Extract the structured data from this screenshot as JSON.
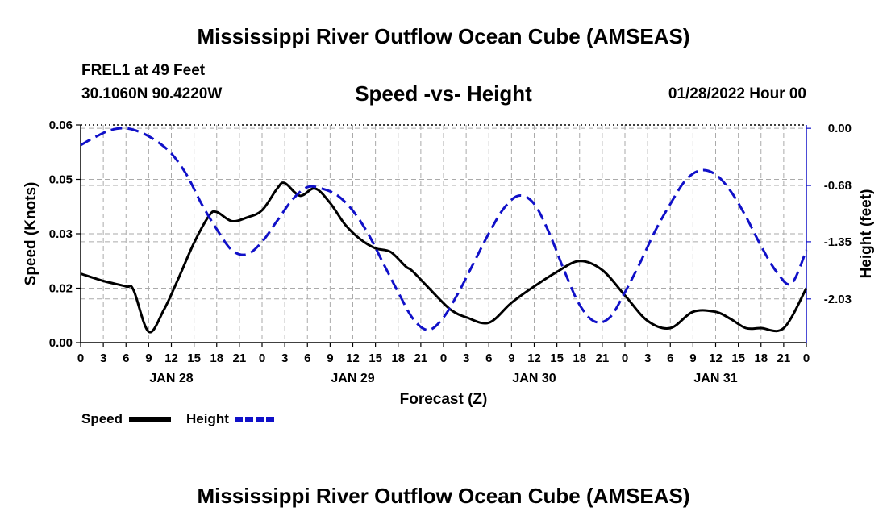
{
  "header": {
    "title": "Mississippi River Outflow Ocean Cube (AMSEAS)",
    "station": "FREL1 at 49 Feet",
    "coords": "30.1060N  90.4220W",
    "subtitle": "Speed -vs- Height",
    "timestamp": "01/28/2022 Hour 00"
  },
  "footer": {
    "title": "Mississippi River Outflow Ocean Cube (AMSEAS)"
  },
  "legend": {
    "speed_label": "Speed",
    "height_label": "Height"
  },
  "colors": {
    "speed": "#000000",
    "height": "#1010c8",
    "grid": "#aaaaaa"
  },
  "chart_data": {
    "type": "line",
    "xlabel": "Forecast (Z)",
    "ylabel": "Speed (Knots)",
    "ylabel_right": "Height (feet)",
    "x_tick_labels": [
      "0",
      "3",
      "6",
      "9",
      "12",
      "15",
      "18",
      "21",
      "0",
      "3",
      "6",
      "9",
      "12",
      "15",
      "18",
      "21",
      "0",
      "3",
      "6",
      "9",
      "12",
      "15",
      "18",
      "21",
      "0",
      "3",
      "6",
      "9",
      "12",
      "15",
      "18",
      "21",
      "0"
    ],
    "x_range": [
      0,
      96
    ],
    "day_labels": [
      {
        "hour": 12,
        "label": "JAN 28"
      },
      {
        "hour": 36,
        "label": "JAN 29"
      },
      {
        "hour": 60,
        "label": "JAN 30"
      },
      {
        "hour": 84,
        "label": "JAN 31"
      }
    ],
    "y_left_ticks": [
      "0.00",
      "0.02",
      "0.03",
      "0.05",
      "0.06"
    ],
    "y_left_range": [
      0,
      0.06
    ],
    "y_right_ticks": [
      {
        "value": 0.0,
        "label": "0.00"
      },
      {
        "value": -0.68,
        "label": "-0.68"
      },
      {
        "value": -1.35,
        "label": "-1.35"
      },
      {
        "value": -2.03,
        "label": "-2.03"
      }
    ],
    "y_right_range": [
      -2.55,
      0.04
    ],
    "series": [
      {
        "name": "Speed",
        "axis": "left",
        "x": [
          0,
          3,
          6,
          7,
          9,
          11,
          13,
          15,
          17,
          18,
          20,
          22,
          24,
          26,
          27,
          29,
          31,
          33,
          35,
          37,
          39,
          41,
          43,
          44,
          47,
          49,
          51,
          54,
          57,
          60,
          63,
          66,
          69,
          72,
          75,
          78,
          81,
          84,
          86,
          88,
          90,
          93,
          96
        ],
        "y": [
          0.019,
          0.017,
          0.0155,
          0.0145,
          0.003,
          0.009,
          0.018,
          0.0275,
          0.035,
          0.036,
          0.0335,
          0.0345,
          0.0365,
          0.0425,
          0.044,
          0.0405,
          0.0425,
          0.0385,
          0.0325,
          0.0285,
          0.026,
          0.025,
          0.021,
          0.0195,
          0.013,
          0.009,
          0.007,
          0.0055,
          0.011,
          0.0155,
          0.0195,
          0.0225,
          0.02,
          0.013,
          0.006,
          0.004,
          0.0085,
          0.0085,
          0.0065,
          0.004,
          0.004,
          0.004,
          0.015
        ]
      },
      {
        "name": "Height",
        "axis": "right",
        "x": [
          0,
          2,
          4,
          6,
          8,
          10,
          12,
          14,
          16,
          18,
          20,
          22,
          24,
          26,
          28,
          30,
          32,
          34,
          36,
          38,
          40,
          42,
          44,
          46,
          48,
          50,
          52,
          54,
          56,
          58,
          60,
          62,
          64,
          66,
          68,
          70,
          72,
          74,
          76,
          78,
          80,
          82,
          84,
          86,
          88,
          90,
          92,
          94,
          96
        ],
        "y": [
          -0.2,
          -0.1,
          -0.02,
          0.0,
          -0.05,
          -0.15,
          -0.3,
          -0.55,
          -0.9,
          -1.2,
          -1.45,
          -1.5,
          -1.35,
          -1.1,
          -0.85,
          -0.7,
          -0.72,
          -0.8,
          -0.98,
          -1.25,
          -1.6,
          -1.95,
          -2.27,
          -2.4,
          -2.25,
          -1.95,
          -1.6,
          -1.25,
          -0.95,
          -0.8,
          -0.9,
          -1.25,
          -1.7,
          -2.1,
          -2.3,
          -2.25,
          -1.95,
          -1.6,
          -1.22,
          -0.9,
          -0.62,
          -0.5,
          -0.55,
          -0.75,
          -1.05,
          -1.4,
          -1.7,
          -1.85,
          -1.45
        ]
      }
    ]
  }
}
